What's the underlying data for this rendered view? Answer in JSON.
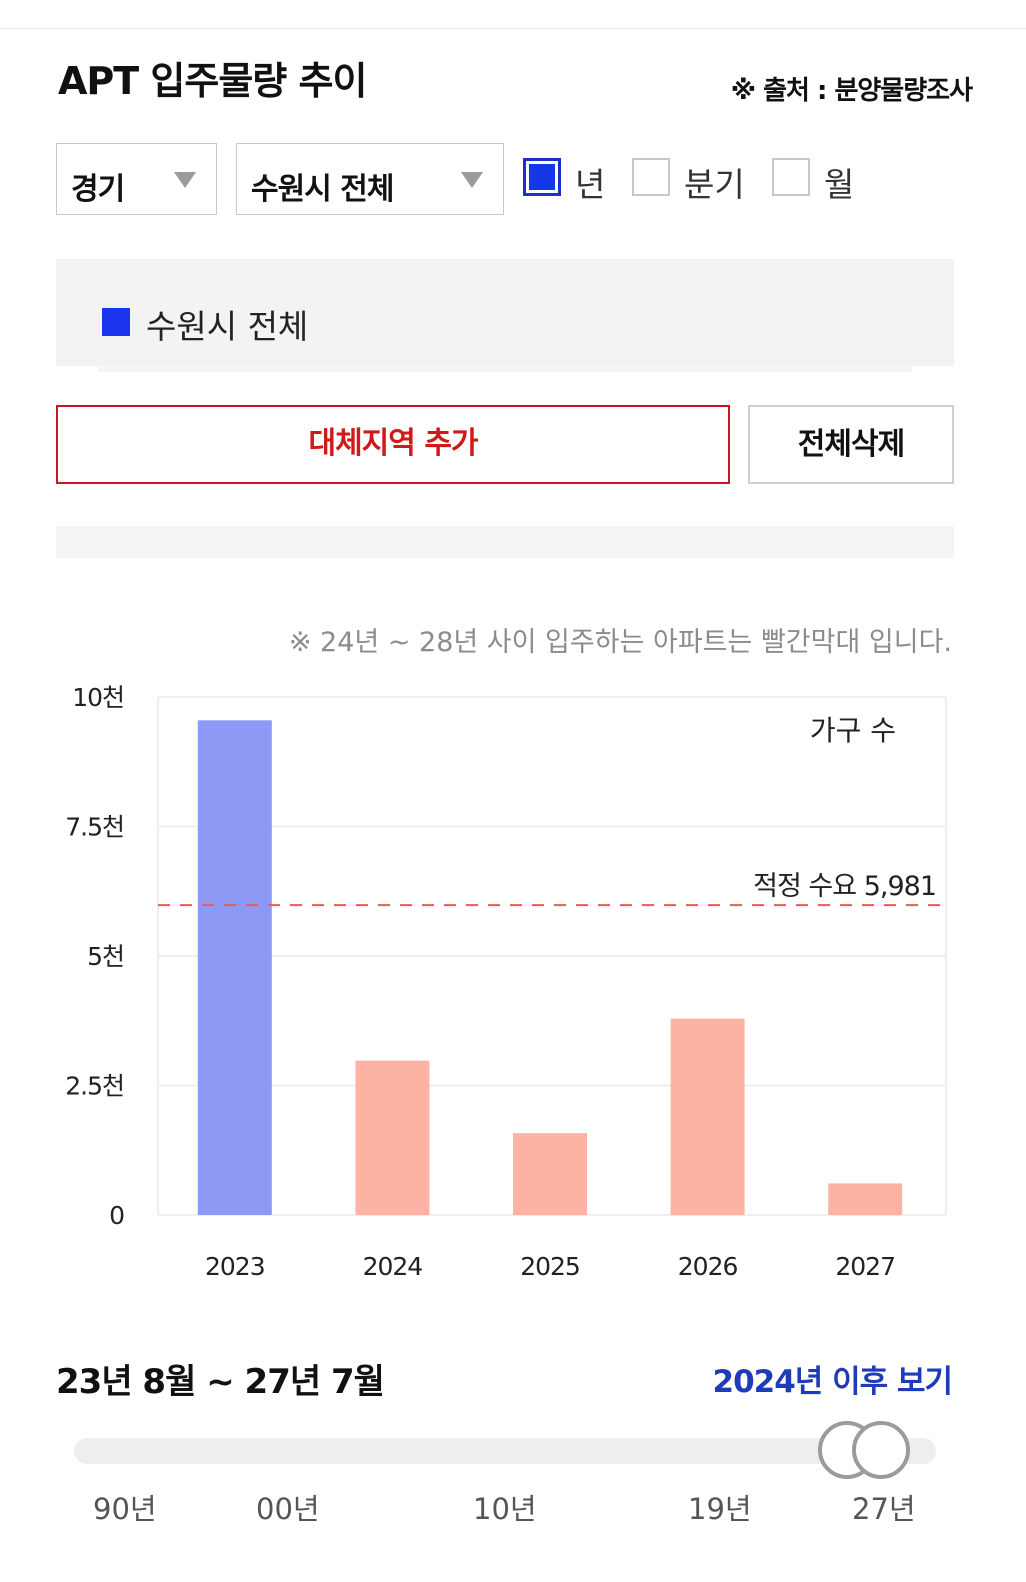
{
  "header": {
    "title": "APT 입주물량 추이",
    "source": "※ 출처 : 분양물량조사"
  },
  "filters": {
    "province": "경기",
    "city": "수원시 전체",
    "periods": [
      {
        "label": "년",
        "checked": true
      },
      {
        "label": "분기",
        "checked": false
      },
      {
        "label": "월",
        "checked": false
      }
    ]
  },
  "legend": {
    "label": "수원시 전체",
    "color": "#1b35ee"
  },
  "buttons": {
    "add_region": "대체지역 추가",
    "delete_all": "전체삭제"
  },
  "chart_note": "※ 24년 ~ 28년 사이 입주하는 아파트는 빨간막대 입니다.",
  "chart_data": {
    "type": "bar",
    "categories": [
      "2023",
      "2024",
      "2025",
      "2026",
      "2027"
    ],
    "values": [
      9550,
      2980,
      1580,
      3790,
      610
    ],
    "bar_colors": [
      "#8c9af6",
      "#fdb3a3",
      "#fdb3a3",
      "#fdb3a3",
      "#fdb3a3"
    ],
    "ylim": [
      0,
      10000
    ],
    "yticks": [
      0,
      2500,
      5000,
      7500,
      10000
    ],
    "ytick_labels": [
      "0",
      "2.5천",
      "5천",
      "7.5천",
      "10천"
    ],
    "ylabel": "가구 수",
    "reference_line": {
      "value": 5981,
      "label": "적정 수요 5,981",
      "color": "#e85a5a"
    },
    "grid": true
  },
  "range": {
    "text": "23년 8월 ~ 27년 7월",
    "link": "2024년 이후 보기"
  },
  "slider": {
    "ticks": [
      "90년",
      "00년",
      "10년",
      "19년",
      "27년"
    ]
  }
}
